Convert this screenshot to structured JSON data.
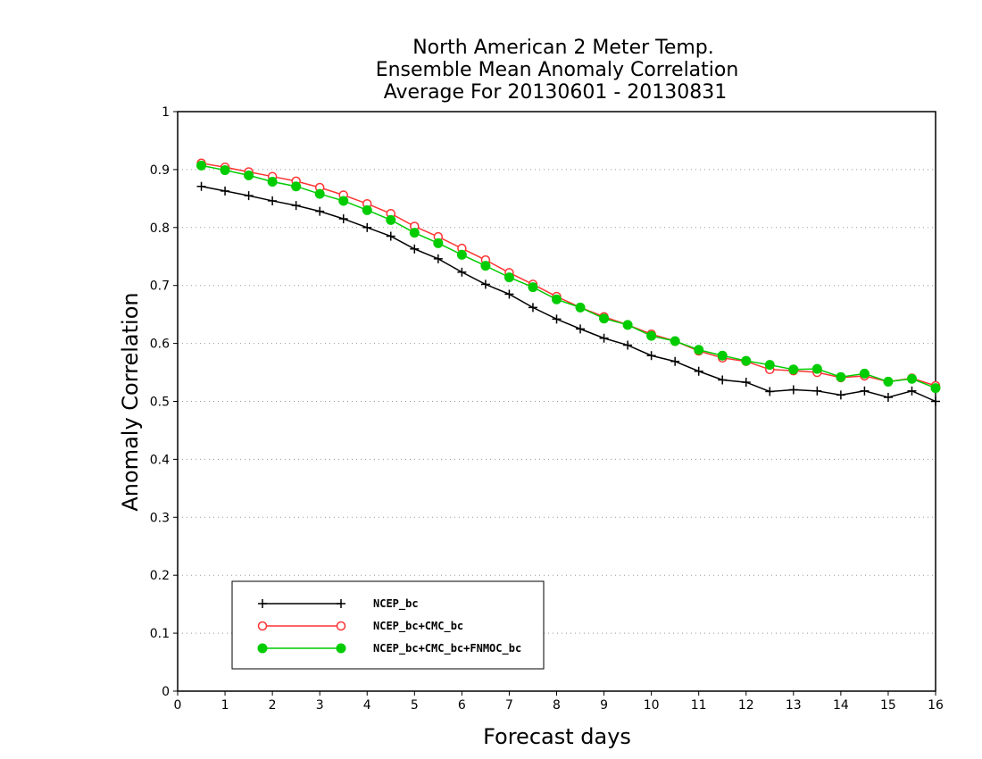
{
  "chart_data": {
    "type": "line",
    "title_lines": [
      "North American 2 Meter Temp.",
      "Ensemble Mean Anomaly Correlation",
      "Average For 20130601 - 20130831"
    ],
    "xlabel": "Forecast days",
    "ylabel": "Anomaly Correlation",
    "xlim": [
      0,
      16
    ],
    "ylim": [
      0,
      1
    ],
    "x_ticks": [
      "0",
      "1",
      "2",
      "3",
      "4",
      "5",
      "6",
      "7",
      "8",
      "9",
      "10",
      "11",
      "12",
      "13",
      "14",
      "15",
      "16"
    ],
    "y_ticks": [
      "0",
      "0.1",
      "0.2",
      "0.3",
      "0.4",
      "0.5",
      "0.6",
      "0.7",
      "0.8",
      "0.9",
      "1"
    ],
    "grid": true,
    "legend_position": "bottom-left",
    "x": [
      0.5,
      1,
      1.5,
      2,
      2.5,
      3,
      3.5,
      4,
      4.5,
      5,
      5.5,
      6,
      6.5,
      7,
      7.5,
      8,
      8.5,
      9,
      9.5,
      10,
      10.5,
      11,
      11.5,
      12,
      12.5,
      13,
      13.5,
      14,
      14.5,
      15,
      15.5,
      16
    ],
    "series": [
      {
        "name": "NCEP_bc",
        "color": "#000000",
        "marker": "plus",
        "values": [
          0.871,
          0.863,
          0.855,
          0.846,
          0.838,
          0.828,
          0.815,
          0.8,
          0.785,
          0.763,
          0.746,
          0.723,
          0.702,
          0.685,
          0.662,
          0.642,
          0.625,
          0.609,
          0.597,
          0.579,
          0.569,
          0.552,
          0.537,
          0.533,
          0.517,
          0.52,
          0.518,
          0.511,
          0.518,
          0.507,
          0.518,
          0.5
        ]
      },
      {
        "name": "NCEP_bc+CMC_bc",
        "color": "#ff3333",
        "marker": "open-circle",
        "values": [
          0.911,
          0.904,
          0.896,
          0.888,
          0.88,
          0.869,
          0.856,
          0.841,
          0.824,
          0.802,
          0.784,
          0.764,
          0.744,
          0.722,
          0.702,
          0.681,
          0.662,
          0.646,
          0.632,
          0.616,
          0.604,
          0.587,
          0.575,
          0.569,
          0.555,
          0.553,
          0.55,
          0.541,
          0.544,
          0.534,
          0.54,
          0.527
        ]
      },
      {
        "name": "NCEP_bc+CMC_bc+FNMOC_bc",
        "color": "#00cc00",
        "marker": "filled-circle",
        "values": [
          0.907,
          0.899,
          0.89,
          0.879,
          0.871,
          0.858,
          0.846,
          0.83,
          0.813,
          0.791,
          0.773,
          0.753,
          0.734,
          0.714,
          0.697,
          0.676,
          0.662,
          0.643,
          0.632,
          0.613,
          0.604,
          0.589,
          0.579,
          0.57,
          0.563,
          0.555,
          0.556,
          0.542,
          0.548,
          0.534,
          0.539,
          0.523
        ]
      }
    ]
  }
}
